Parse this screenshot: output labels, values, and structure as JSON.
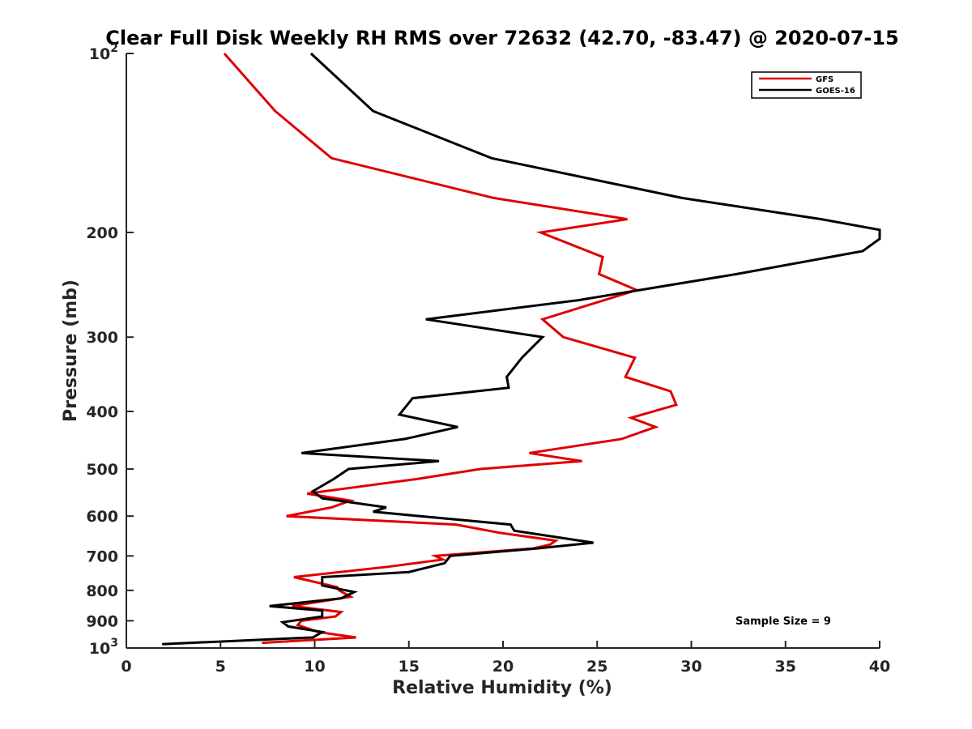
{
  "chart_data": {
    "type": "line",
    "title": "Clear Full Disk Weekly RH RMS over 72632 (42.70, -83.47) @ 2020-07-15",
    "xlabel": "Relative Humidity (%)",
    "ylabel": "Pressure (mb)",
    "xlim": [
      0,
      40
    ],
    "ylim": [
      100,
      1000
    ],
    "y_scale": "log",
    "y_reversed": true,
    "grid": false,
    "legend_position": "top-right",
    "x_ticks": [
      "0",
      "5",
      "10",
      "15",
      "20",
      "25",
      "30",
      "35",
      "40"
    ],
    "y_ticks": [
      {
        "value": 100,
        "base": "10",
        "exp": "2"
      },
      {
        "value": 200,
        "label": "200"
      },
      {
        "value": 300,
        "label": "300"
      },
      {
        "value": 400,
        "label": "400"
      },
      {
        "value": 500,
        "label": "500"
      },
      {
        "value": 600,
        "label": "600"
      },
      {
        "value": 700,
        "label": "700"
      },
      {
        "value": 800,
        "label": "800"
      },
      {
        "value": 900,
        "label": "900"
      },
      {
        "value": 1000,
        "base": "10",
        "exp": "3"
      }
    ],
    "annotation": "Sample Size = 9",
    "series": [
      {
        "name": "GFS",
        "color": "#e00000",
        "points": [
          {
            "x": 5.2,
            "y": 100
          },
          {
            "x": 7.9,
            "y": 125
          },
          {
            "x": 10.9,
            "y": 150
          },
          {
            "x": 19.5,
            "y": 175
          },
          {
            "x": 26.6,
            "y": 190
          },
          {
            "x": 22.0,
            "y": 200
          },
          {
            "x": 25.3,
            "y": 220
          },
          {
            "x": 25.1,
            "y": 235
          },
          {
            "x": 27.1,
            "y": 250
          },
          {
            "x": 22.1,
            "y": 280
          },
          {
            "x": 23.2,
            "y": 300
          },
          {
            "x": 27.0,
            "y": 325
          },
          {
            "x": 26.5,
            "y": 350
          },
          {
            "x": 28.9,
            "y": 370
          },
          {
            "x": 29.2,
            "y": 390
          },
          {
            "x": 26.8,
            "y": 410
          },
          {
            "x": 28.1,
            "y": 425
          },
          {
            "x": 26.3,
            "y": 445
          },
          {
            "x": 21.4,
            "y": 470
          },
          {
            "x": 24.2,
            "y": 485
          },
          {
            "x": 18.8,
            "y": 500
          },
          {
            "x": 15.4,
            "y": 520
          },
          {
            "x": 9.6,
            "y": 550
          },
          {
            "x": 11.9,
            "y": 565
          },
          {
            "x": 10.9,
            "y": 580
          },
          {
            "x": 8.5,
            "y": 600
          },
          {
            "x": 17.5,
            "y": 620
          },
          {
            "x": 19.8,
            "y": 640
          },
          {
            "x": 22.8,
            "y": 660
          },
          {
            "x": 22.5,
            "y": 670
          },
          {
            "x": 21.6,
            "y": 680
          },
          {
            "x": 16.4,
            "y": 700
          },
          {
            "x": 16.8,
            "y": 710
          },
          {
            "x": 13.9,
            "y": 730
          },
          {
            "x": 8.9,
            "y": 760
          },
          {
            "x": 11.2,
            "y": 790
          },
          {
            "x": 11.3,
            "y": 800
          },
          {
            "x": 11.9,
            "y": 820
          },
          {
            "x": 8.8,
            "y": 850
          },
          {
            "x": 11.4,
            "y": 870
          },
          {
            "x": 11.1,
            "y": 885
          },
          {
            "x": 9.3,
            "y": 900
          },
          {
            "x": 9.1,
            "y": 915
          },
          {
            "x": 10.2,
            "y": 940
          },
          {
            "x": 12.2,
            "y": 960
          },
          {
            "x": 7.2,
            "y": 980
          }
        ]
      },
      {
        "name": "GOES-16",
        "color": "#000000",
        "points": [
          {
            "x": 9.8,
            "y": 100
          },
          {
            "x": 13.1,
            "y": 125
          },
          {
            "x": 19.4,
            "y": 150
          },
          {
            "x": 29.5,
            "y": 175
          },
          {
            "x": 36.9,
            "y": 190
          },
          {
            "x": 40.0,
            "y": 198
          },
          {
            "x": 40.0,
            "y": 205
          },
          {
            "x": 39.1,
            "y": 215
          },
          {
            "x": 32.4,
            "y": 235
          },
          {
            "x": 24.0,
            "y": 260
          },
          {
            "x": 15.9,
            "y": 280
          },
          {
            "x": 22.1,
            "y": 300
          },
          {
            "x": 21.0,
            "y": 325
          },
          {
            "x": 20.2,
            "y": 350
          },
          {
            "x": 20.3,
            "y": 365
          },
          {
            "x": 15.2,
            "y": 380
          },
          {
            "x": 14.5,
            "y": 405
          },
          {
            "x": 17.6,
            "y": 425
          },
          {
            "x": 14.8,
            "y": 445
          },
          {
            "x": 9.3,
            "y": 470
          },
          {
            "x": 16.6,
            "y": 485
          },
          {
            "x": 11.8,
            "y": 500
          },
          {
            "x": 11.0,
            "y": 520
          },
          {
            "x": 9.9,
            "y": 545
          },
          {
            "x": 10.4,
            "y": 560
          },
          {
            "x": 13.8,
            "y": 580
          },
          {
            "x": 13.1,
            "y": 590
          },
          {
            "x": 20.4,
            "y": 620
          },
          {
            "x": 20.6,
            "y": 635
          },
          {
            "x": 24.8,
            "y": 665
          },
          {
            "x": 21.8,
            "y": 680
          },
          {
            "x": 17.2,
            "y": 700
          },
          {
            "x": 16.9,
            "y": 720
          },
          {
            "x": 15.0,
            "y": 745
          },
          {
            "x": 10.4,
            "y": 760
          },
          {
            "x": 10.4,
            "y": 785
          },
          {
            "x": 12.1,
            "y": 805
          },
          {
            "x": 11.4,
            "y": 825
          },
          {
            "x": 7.6,
            "y": 850
          },
          {
            "x": 10.4,
            "y": 865
          },
          {
            "x": 10.4,
            "y": 885
          },
          {
            "x": 8.3,
            "y": 905
          },
          {
            "x": 8.6,
            "y": 920
          },
          {
            "x": 10.4,
            "y": 940
          },
          {
            "x": 9.9,
            "y": 960
          },
          {
            "x": 1.9,
            "y": 985
          }
        ]
      }
    ]
  }
}
